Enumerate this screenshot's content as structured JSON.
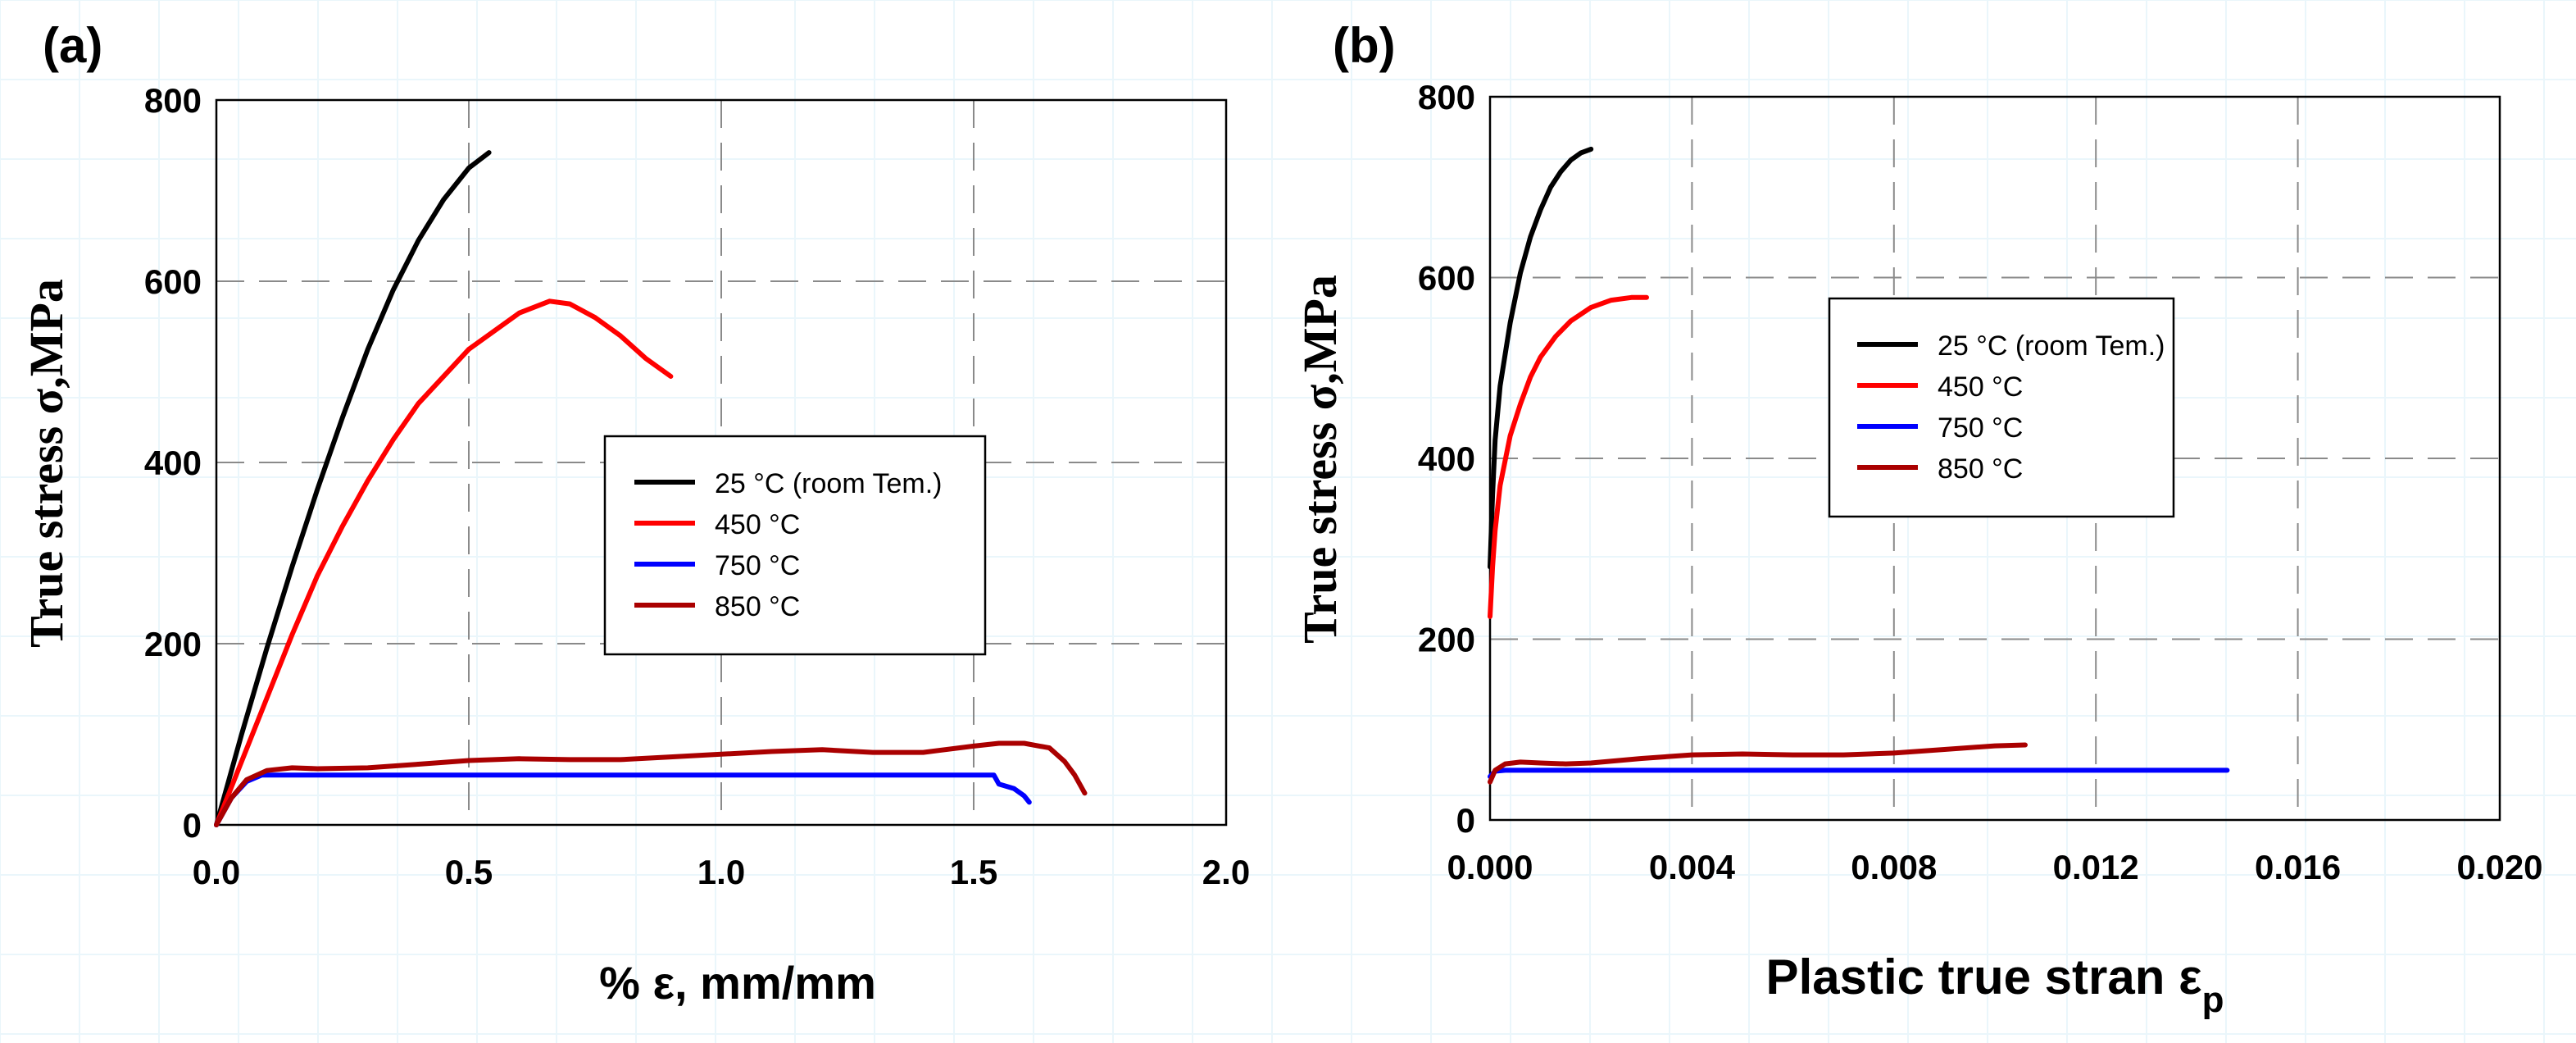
{
  "chart_data": [
    {
      "panel": "(a)",
      "type": "line",
      "xlabel": "% ε, mm/mm",
      "ylabel": "True stress σ,MPa",
      "xlim": [
        0,
        2.0
      ],
      "ylim": [
        0,
        800
      ],
      "xticks": [
        0.0,
        0.5,
        1.0,
        1.5,
        2.0
      ],
      "xtick_labels": [
        "0.0",
        "0.5",
        "1.0",
        "1.5",
        "2.0"
      ],
      "yticks": [
        0,
        200,
        400,
        600,
        800
      ],
      "ytick_labels": [
        "0",
        "200",
        "400",
        "600",
        "800"
      ],
      "grid": true,
      "legend_position": "center-right",
      "series": [
        {
          "name": "25 °C (room Tem.)",
          "color": "#000000",
          "x": [
            0,
            0.05,
            0.1,
            0.15,
            0.2,
            0.25,
            0.3,
            0.35,
            0.4,
            0.45,
            0.5,
            0.54
          ],
          "y": [
            0,
            100,
            195,
            285,
            370,
            450,
            525,
            590,
            645,
            690,
            725,
            742
          ]
        },
        {
          "name": "450 °C",
          "color": "#ff0000",
          "x": [
            0,
            0.05,
            0.1,
            0.15,
            0.2,
            0.25,
            0.3,
            0.35,
            0.4,
            0.5,
            0.6,
            0.66,
            0.7,
            0.75,
            0.8,
            0.85,
            0.9
          ],
          "y": [
            0,
            70,
            140,
            210,
            275,
            330,
            380,
            425,
            465,
            525,
            565,
            578,
            575,
            560,
            540,
            515,
            495
          ]
        },
        {
          "name": "750 °C",
          "color": "#0000ff",
          "x": [
            0,
            0.03,
            0.06,
            0.09,
            0.2,
            0.5,
            1.0,
            1.3,
            1.52,
            1.54,
            1.55,
            1.58,
            1.6,
            1.61
          ],
          "y": [
            0,
            30,
            48,
            55,
            55,
            55,
            55,
            55,
            55,
            55,
            45,
            40,
            32,
            25
          ]
        },
        {
          "name": "850 °C",
          "color": "#aa0000",
          "x": [
            0,
            0.03,
            0.06,
            0.1,
            0.15,
            0.2,
            0.3,
            0.4,
            0.5,
            0.6,
            0.7,
            0.8,
            0.9,
            1.0,
            1.1,
            1.2,
            1.3,
            1.4,
            1.5,
            1.55,
            1.6,
            1.65,
            1.68,
            1.7,
            1.72
          ],
          "y": [
            0,
            30,
            50,
            60,
            63,
            62,
            63,
            67,
            71,
            73,
            72,
            72,
            75,
            78,
            81,
            83,
            80,
            80,
            87,
            90,
            90,
            85,
            70,
            55,
            35
          ]
        }
      ]
    },
    {
      "panel": "(b)",
      "type": "line",
      "xlabel": "Plastic true stran ε",
      "xlabel_sub": "p",
      "ylabel": "True stress σ,MPa",
      "xlim": [
        0,
        0.02
      ],
      "ylim": [
        0,
        800
      ],
      "xticks": [
        0.0,
        0.004,
        0.008,
        0.012,
        0.016,
        0.02
      ],
      "xtick_labels": [
        "0.000",
        "0.004",
        "0.008",
        "0.012",
        "0.016",
        "0.020"
      ],
      "yticks": [
        0,
        200,
        400,
        600,
        800
      ],
      "ytick_labels": [
        "0",
        "200",
        "400",
        "600",
        "800"
      ],
      "grid": true,
      "legend_position": "upper-center",
      "series": [
        {
          "name": "25 °C (room Tem.)",
          "color": "#000000",
          "x": [
            0,
            5e-05,
            0.0001,
            0.0002,
            0.0004,
            0.0006,
            0.0008,
            0.001,
            0.0012,
            0.0014,
            0.0016,
            0.0018,
            0.002
          ],
          "y": [
            280,
            360,
            420,
            480,
            550,
            605,
            645,
            675,
            700,
            717,
            730,
            738,
            742
          ]
        },
        {
          "name": "450 °C",
          "color": "#ff0000",
          "x": [
            0,
            5e-05,
            0.0001,
            0.0002,
            0.0004,
            0.0006,
            0.0008,
            0.001,
            0.0013,
            0.0016,
            0.002,
            0.0024,
            0.0028,
            0.0031
          ],
          "y": [
            225,
            280,
            320,
            370,
            425,
            460,
            490,
            512,
            535,
            552,
            567,
            575,
            578,
            578
          ]
        },
        {
          "name": "750 °C",
          "color": "#0000ff",
          "x": [
            0,
            0.0001,
            0.0003,
            0.001,
            0.005,
            0.01,
            0.0146
          ],
          "y": [
            48,
            54,
            55,
            55,
            55,
            55,
            55
          ]
        },
        {
          "name": "850 °C",
          "color": "#aa0000",
          "x": [
            0,
            0.0001,
            0.0003,
            0.0006,
            0.001,
            0.0015,
            0.002,
            0.003,
            0.004,
            0.005,
            0.006,
            0.007,
            0.008,
            0.009,
            0.01,
            0.0106
          ],
          "y": [
            42,
            55,
            62,
            64,
            63,
            62,
            63,
            68,
            72,
            73,
            72,
            72,
            74,
            78,
            82,
            83
          ]
        }
      ]
    }
  ]
}
